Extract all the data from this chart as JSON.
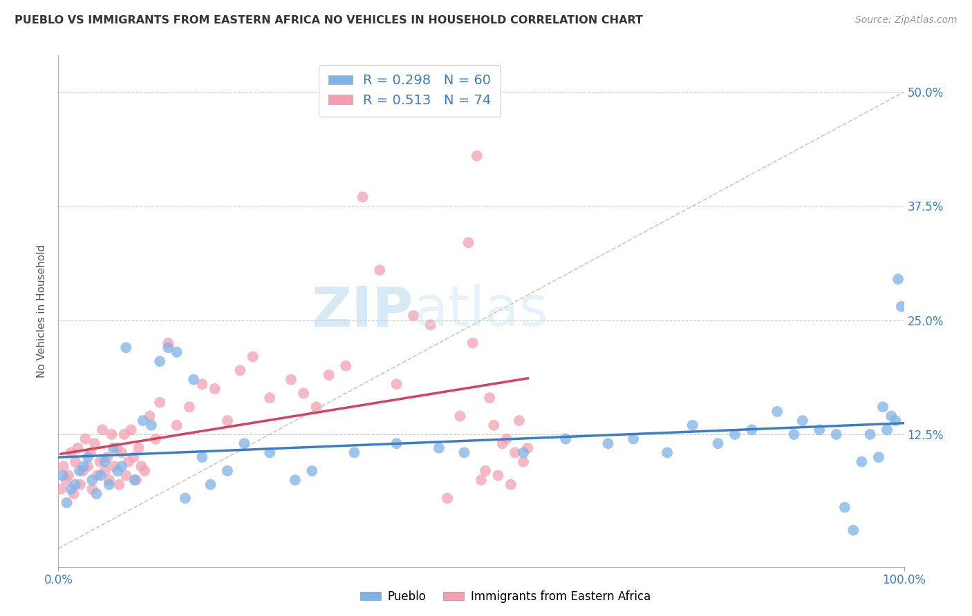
{
  "title": "PUEBLO VS IMMIGRANTS FROM EASTERN AFRICA NO VEHICLES IN HOUSEHOLD CORRELATION CHART",
  "source_text": "Source: ZipAtlas.com",
  "ylabel": "No Vehicles in Household",
  "xlim": [
    0.0,
    100.0
  ],
  "ylim": [
    -2.0,
    54.0
  ],
  "yticks": [
    12.5,
    25.0,
    37.5,
    50.0
  ],
  "yticklabels": [
    "12.5%",
    "25.0%",
    "37.5%",
    "50.0%"
  ],
  "series1_name": "Pueblo",
  "series1_color": "#7EB3E8",
  "series1_R": 0.298,
  "series1_N": 60,
  "series2_name": "Immigrants from Eastern Africa",
  "series2_color": "#F4A0B0",
  "series2_R": 0.513,
  "series2_N": 74,
  "trend1_color": "#3A7DC9",
  "trend2_color": "#D94060",
  "diag_color": "#cccccc",
  "watermark_zip": "ZIP",
  "watermark_atlas": "atlas",
  "background_color": "#ffffff",
  "grid_color": "#cccccc",
  "series1_x": [
    0.5,
    1.0,
    1.5,
    2.0,
    2.5,
    3.0,
    3.5,
    4.0,
    4.5,
    5.0,
    5.5,
    6.0,
    6.5,
    7.0,
    7.5,
    8.0,
    9.0,
    10.0,
    11.0,
    12.0,
    13.0,
    14.0,
    15.0,
    16.0,
    17.0,
    18.0,
    20.0,
    22.0,
    25.0,
    28.0,
    30.0,
    35.0,
    40.0,
    45.0,
    48.0,
    55.0,
    60.0,
    65.0,
    68.0,
    72.0,
    75.0,
    78.0,
    80.0,
    82.0,
    85.0,
    87.0,
    88.0,
    90.0,
    92.0,
    93.0,
    94.0,
    95.0,
    96.0,
    97.0,
    97.5,
    98.0,
    98.5,
    99.0,
    99.3,
    99.7
  ],
  "series1_y": [
    8.0,
    5.0,
    6.5,
    7.0,
    8.5,
    9.0,
    10.0,
    7.5,
    6.0,
    8.0,
    9.5,
    7.0,
    11.0,
    8.5,
    9.0,
    22.0,
    7.5,
    14.0,
    13.5,
    20.5,
    22.0,
    21.5,
    5.5,
    18.5,
    10.0,
    7.0,
    8.5,
    11.5,
    10.5,
    7.5,
    8.5,
    10.5,
    11.5,
    11.0,
    10.5,
    10.5,
    12.0,
    11.5,
    12.0,
    10.5,
    13.5,
    11.5,
    12.5,
    13.0,
    15.0,
    12.5,
    14.0,
    13.0,
    12.5,
    4.5,
    2.0,
    9.5,
    12.5,
    10.0,
    15.5,
    13.0,
    14.5,
    14.0,
    29.5,
    26.5
  ],
  "series2_x": [
    0.3,
    0.6,
    0.9,
    1.2,
    1.5,
    1.8,
    2.0,
    2.3,
    2.6,
    2.9,
    3.2,
    3.5,
    3.8,
    4.0,
    4.3,
    4.6,
    4.9,
    5.2,
    5.5,
    5.8,
    6.0,
    6.3,
    6.6,
    6.9,
    7.2,
    7.5,
    7.8,
    8.0,
    8.3,
    8.6,
    8.9,
    9.2,
    9.5,
    9.8,
    10.2,
    10.8,
    11.5,
    12.0,
    13.0,
    14.0,
    15.5,
    17.0,
    18.5,
    20.0,
    21.5,
    23.0,
    25.0,
    27.5,
    29.0,
    30.5,
    32.0,
    34.0,
    36.0,
    38.0,
    40.0,
    42.0,
    44.0,
    46.0,
    47.5,
    48.5,
    49.0,
    49.5,
    50.0,
    50.5,
    51.0,
    51.5,
    52.0,
    52.5,
    53.0,
    53.5,
    54.0,
    54.5,
    55.0,
    55.5
  ],
  "series2_y": [
    6.5,
    9.0,
    7.5,
    8.0,
    10.5,
    6.0,
    9.5,
    11.0,
    7.0,
    8.5,
    12.0,
    9.0,
    10.5,
    6.5,
    11.5,
    8.0,
    9.5,
    13.0,
    8.5,
    10.0,
    7.5,
    12.5,
    9.0,
    11.0,
    7.0,
    10.5,
    12.5,
    8.0,
    9.5,
    13.0,
    10.0,
    7.5,
    11.0,
    9.0,
    8.5,
    14.5,
    12.0,
    16.0,
    22.5,
    13.5,
    15.5,
    18.0,
    17.5,
    14.0,
    19.5,
    21.0,
    16.5,
    18.5,
    17.0,
    15.5,
    19.0,
    20.0,
    38.5,
    30.5,
    18.0,
    25.5,
    24.5,
    5.5,
    14.5,
    33.5,
    22.5,
    43.0,
    7.5,
    8.5,
    16.5,
    13.5,
    8.0,
    11.5,
    12.0,
    7.0,
    10.5,
    14.0,
    9.5,
    11.0
  ]
}
